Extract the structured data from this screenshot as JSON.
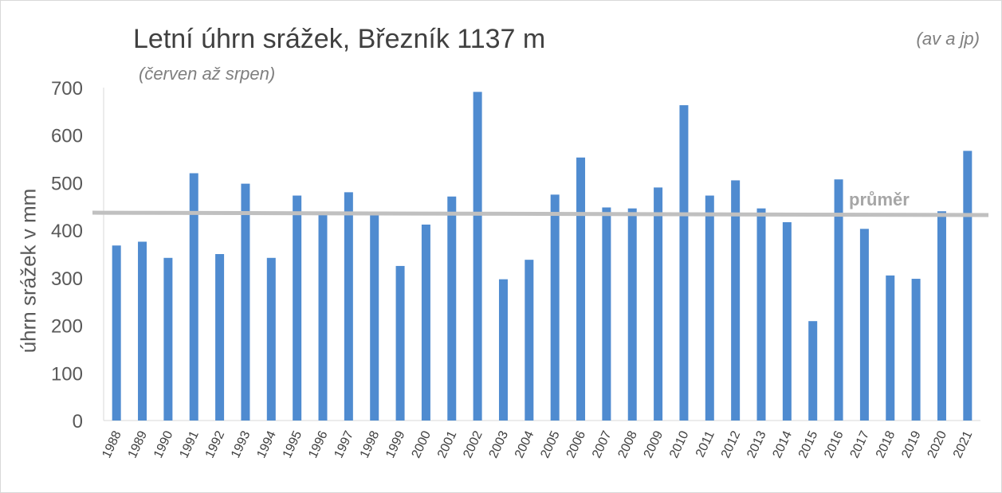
{
  "chart_data": {
    "type": "bar",
    "title": "Letní úhrn srážek, Březník 1137 m",
    "subtitle": "(červen až srpen)",
    "credit": "(av a jp)",
    "xlabel": "",
    "ylabel": "úhrn srážek v mm",
    "ylim": [
      0,
      700
    ],
    "yticks": [
      0,
      100,
      200,
      300,
      400,
      500,
      600,
      700
    ],
    "grid": false,
    "categories": [
      "1988",
      "1989",
      "1990",
      "1991",
      "1992",
      "1993",
      "1994",
      "1995",
      "1996",
      "1997",
      "1998",
      "1999",
      "2000",
      "2001",
      "2002",
      "2003",
      "2004",
      "2005",
      "2006",
      "2007",
      "2008",
      "2009",
      "2010",
      "2011",
      "2012",
      "2013",
      "2014",
      "2015",
      "2016",
      "2017",
      "2018",
      "2019",
      "2020",
      "2021"
    ],
    "series": [
      {
        "values": [
          368,
          376,
          342,
          520,
          350,
          498,
          342,
          473,
          432,
          480,
          434,
          325,
          412,
          471,
          691,
          297,
          338,
          475,
          553,
          448,
          446,
          490,
          663,
          473,
          505,
          446,
          417,
          209,
          507,
          403,
          305,
          298,
          440,
          567
        ],
        "color": "#4f8bd0"
      }
    ],
    "reference_line": {
      "label": "průměr",
      "value_start": 437,
      "value_end": 432,
      "color": "#c0c0c0"
    }
  }
}
